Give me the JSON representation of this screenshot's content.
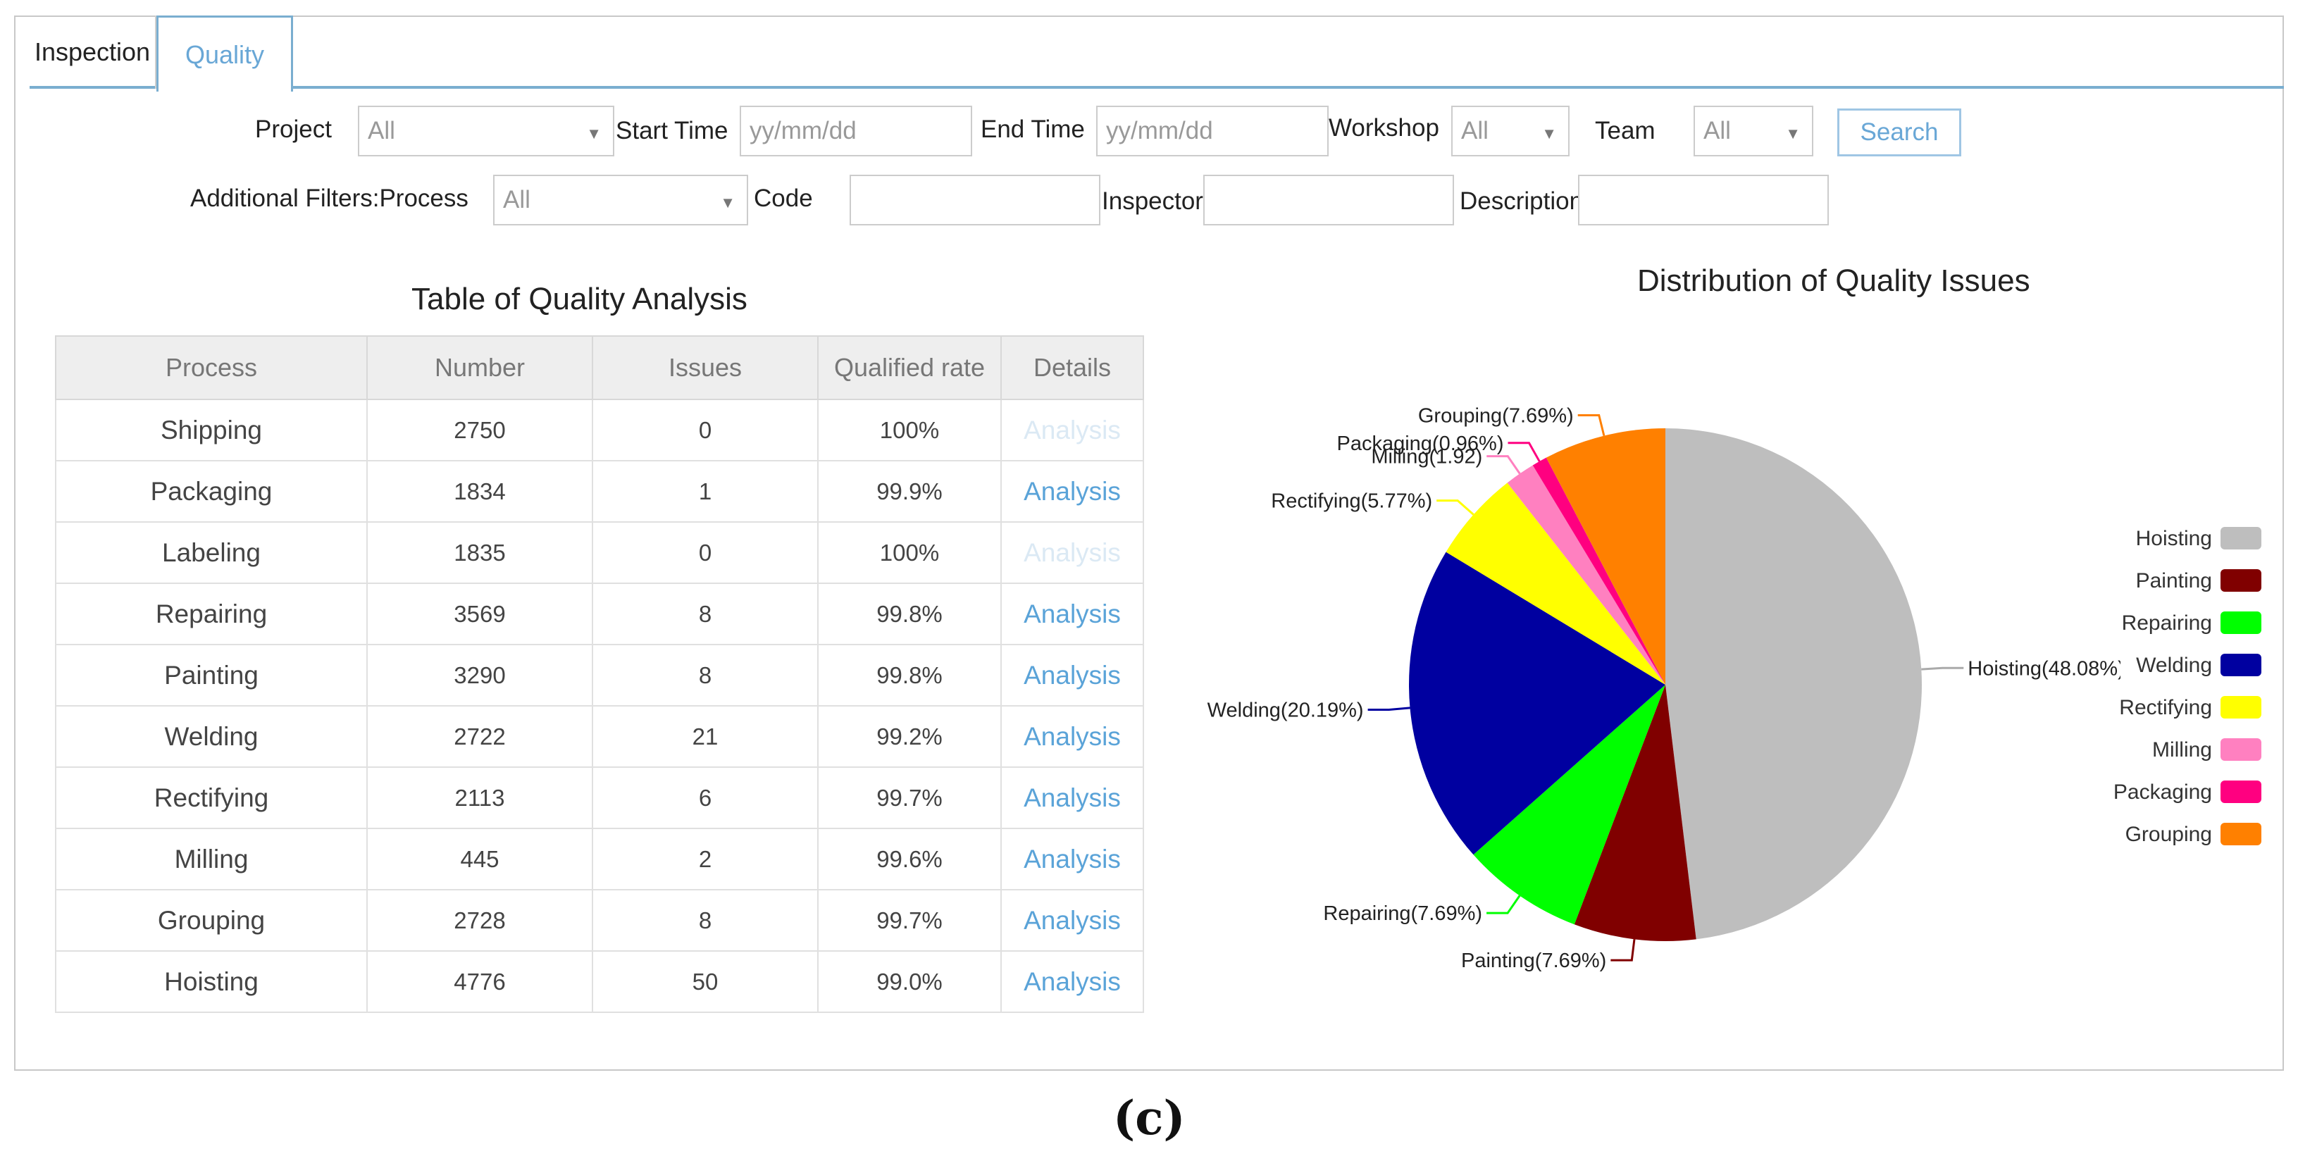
{
  "tabs": [
    "Inspection",
    "Quality"
  ],
  "filters": {
    "project_label": "Project",
    "project_value": "All",
    "start_label": "Start Time",
    "start_placeholder": "yy/mm/dd",
    "end_label": "End Time",
    "end_placeholder": "yy/mm/dd",
    "workshop_label": "Workshop",
    "workshop_value": "All",
    "team_label": "Team",
    "team_value": "All",
    "search_label": "Search",
    "additional_label": "Additional Filters:Process",
    "process_value": "All",
    "code_label": "Code",
    "inspector_label": "Inspector",
    "description_label": "Description"
  },
  "table": {
    "title": "Table of Quality Analysis",
    "headers": [
      "Process",
      "Number",
      "Issues",
      "Qualified rate",
      "Details"
    ],
    "rows": [
      {
        "process": "Shipping",
        "number": "2750",
        "issues": "0",
        "rate": "100%",
        "details": "Analysis",
        "enabled": false
      },
      {
        "process": "Packaging",
        "number": "1834",
        "issues": "1",
        "rate": "99.9%",
        "details": "Analysis",
        "enabled": true
      },
      {
        "process": "Labeling",
        "number": "1835",
        "issues": "0",
        "rate": "100%",
        "details": "Analysis",
        "enabled": false
      },
      {
        "process": "Repairing",
        "number": "3569",
        "issues": "8",
        "rate": "99.8%",
        "details": "Analysis",
        "enabled": true
      },
      {
        "process": "Painting",
        "number": "3290",
        "issues": "8",
        "rate": "99.8%",
        "details": "Analysis",
        "enabled": true
      },
      {
        "process": "Welding",
        "number": "2722",
        "issues": "21",
        "rate": "99.2%",
        "details": "Analysis",
        "enabled": true
      },
      {
        "process": "Rectifying",
        "number": "2113",
        "issues": "6",
        "rate": "99.7%",
        "details": "Analysis",
        "enabled": true
      },
      {
        "process": "Milling",
        "number": "445",
        "issues": "2",
        "rate": "99.6%",
        "details": "Analysis",
        "enabled": true
      },
      {
        "process": "Grouping",
        "number": "2728",
        "issues": "8",
        "rate": "99.7%",
        "details": "Analysis",
        "enabled": true
      },
      {
        "process": "Hoisting",
        "number": "4776",
        "issues": "50",
        "rate": "99.0%",
        "details": "Analysis",
        "enabled": true
      }
    ]
  },
  "chart_data": {
    "type": "pie",
    "title": "Distribution of Quality Issues",
    "legend_placement": "right",
    "slices": [
      {
        "name": "Hoisting",
        "value": 48.08,
        "label": "Hoisting(48.08%)",
        "color": "#bebebe"
      },
      {
        "name": "Painting",
        "value": 7.69,
        "label": "Painting(7.69%)",
        "color": "#800000"
      },
      {
        "name": "Repairing",
        "value": 7.69,
        "label": "Repairing(7.69%)",
        "color": "#00ff00"
      },
      {
        "name": "Welding",
        "value": 20.19,
        "label": "Welding(20.19%)",
        "color": "#0000a0"
      },
      {
        "name": "Rectifying",
        "value": 5.77,
        "label": "Rectifying(5.77%)",
        "color": "#ffff00"
      },
      {
        "name": "Milling",
        "value": 1.92,
        "label": "Milling(1.92)",
        "color": "#ff80c0"
      },
      {
        "name": "Packaging",
        "value": 0.96,
        "label": "Packaging(0.96%)",
        "color": "#ff0080"
      },
      {
        "name": "Grouping",
        "value": 7.69,
        "label": "Grouping(7.69%)",
        "color": "#ff8000"
      }
    ]
  },
  "caption": "(c)"
}
